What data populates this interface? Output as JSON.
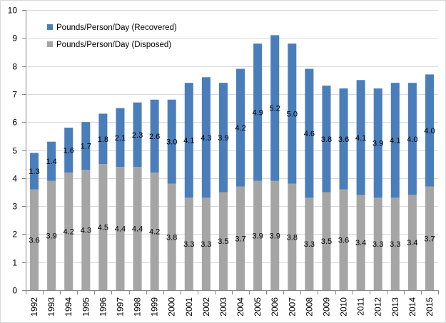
{
  "chart_data": {
    "type": "bar",
    "stacked": true,
    "title": "",
    "xlabel": "",
    "ylabel": "",
    "ylim": [
      0,
      10
    ],
    "yticks": [
      0,
      1,
      2,
      3,
      4,
      5,
      6,
      7,
      8,
      9,
      10
    ],
    "grid": true,
    "legend_position": "top-left",
    "categories": [
      "1992",
      "1993",
      "1994",
      "1995",
      "1996",
      "1997",
      "1998",
      "1999",
      "2000",
      "2001",
      "2002",
      "2003",
      "2004",
      "2005",
      "2006",
      "2007",
      "2008",
      "2009",
      "2010",
      "2011",
      "2012",
      "2013",
      "2014",
      "2015"
    ],
    "series": [
      {
        "name": "Pounds/Person/Day (Disposed)",
        "color": "#a5a5a5",
        "values": [
          3.6,
          3.9,
          4.2,
          4.3,
          4.5,
          4.4,
          4.4,
          4.2,
          3.8,
          3.3,
          3.3,
          3.5,
          3.7,
          3.9,
          3.9,
          3.8,
          3.3,
          3.5,
          3.6,
          3.4,
          3.3,
          3.3,
          3.4,
          3.7
        ],
        "labels": [
          "3.6",
          "3.9",
          "4.2",
          "4.3",
          "4.5",
          "4.4",
          "4.4",
          "4.2",
          "3.8",
          "3.3",
          "3.3",
          "3.5",
          "3.7",
          "3.9",
          "3.9",
          "3.8",
          "3.3",
          "3.5",
          "3.6",
          "3.4",
          "3.3",
          "3.3",
          "3.4",
          "3.7"
        ]
      },
      {
        "name": "Pounds/Person/Day (Recovered)",
        "color": "#4a7ebb",
        "values": [
          1.3,
          1.4,
          1.6,
          1.7,
          1.8,
          2.1,
          2.3,
          2.6,
          3.0,
          4.1,
          4.3,
          3.9,
          4.2,
          4.9,
          5.2,
          5.0,
          4.6,
          3.8,
          3.6,
          4.1,
          3.9,
          4.1,
          4.0,
          4.0
        ],
        "labels": [
          "1.3",
          "1.4",
          "1.6",
          "1.7",
          "1.8",
          "2.1",
          "2.3",
          "2.6",
          "3.0",
          "4.1",
          "4.3",
          "3.9",
          "4.2",
          "4.9",
          "5.2",
          "5.0",
          "4.6",
          "3.8",
          "3.6",
          "4.1",
          "3.9",
          "4.1",
          "4.0",
          "4.0"
        ]
      }
    ],
    "legend": [
      {
        "label": "Pounds/Person/Day (Recovered)",
        "color": "#4a7ebb"
      },
      {
        "label": "Pounds/Person/Day (Disposed)",
        "color": "#a5a5a5"
      }
    ]
  }
}
